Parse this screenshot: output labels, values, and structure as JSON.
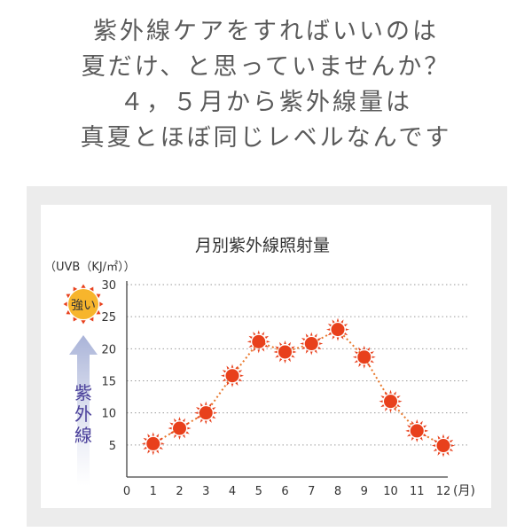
{
  "headline": [
    "紫外線ケアをすればいいのは",
    "夏だけ、と思っていませんか？",
    "４，５月から紫外線量は",
    "真夏とほぼ同じレベルなんです"
  ],
  "chart_data": {
    "type": "line",
    "title": "月別紫外線照射量",
    "ylabel": "（UVB（KJ/㎡））",
    "xlabel": "",
    "x_unit": "(月)",
    "x": [
      1,
      2,
      3,
      4,
      5,
      6,
      7,
      8,
      9,
      10,
      11,
      12
    ],
    "values": [
      5.2,
      7.6,
      10,
      15.8,
      21.1,
      19.5,
      20.8,
      23,
      18.7,
      11.8,
      7.2,
      4.9
    ],
    "ylim": [
      0,
      30
    ],
    "xlim": [
      0,
      12
    ],
    "yticks": [
      "5",
      "10",
      "15",
      "20",
      "25",
      "30"
    ],
    "xticks": [
      "0",
      "1",
      "2",
      "3",
      "4",
      "5",
      "6",
      "7",
      "8",
      "9",
      "10",
      "11",
      "12"
    ],
    "grid": "dotted horizontal",
    "line_color": "#e8782b",
    "marker_color": "#e8401c",
    "legend": null
  },
  "side_legend": {
    "sun_label": "強い",
    "vertical_label": [
      "紫",
      "外",
      "線"
    ],
    "sun_color": "#f7b52c",
    "ray_color": "#e8401c",
    "arrow_color": "#a9b3d8",
    "text_color": "#4a3f9a"
  }
}
